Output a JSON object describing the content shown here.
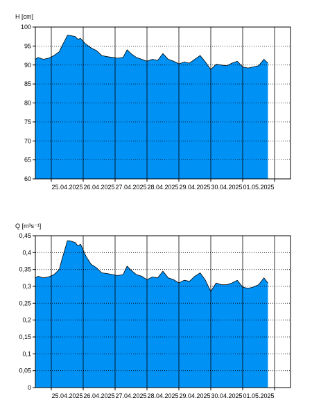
{
  "chart_data": [
    {
      "type": "area",
      "title": "",
      "ylabel": "H [cm]",
      "xlabel": "",
      "ylim": [
        60,
        100
      ],
      "yticks": [
        60,
        65,
        70,
        75,
        80,
        85,
        90,
        95,
        100
      ],
      "ytick_labels": [
        "60",
        "65",
        "70",
        "75",
        "80",
        "85",
        "90",
        "95",
        "100"
      ],
      "xlim": [
        "2025-04-24T12:00",
        "2025-05-02T12:00"
      ],
      "xtick_labels": [
        "25.04.2025",
        "26.04.2025",
        "27.04.2025",
        "28.04.2025",
        "29.04.2025",
        "30.04.2025",
        "01.05.2025"
      ],
      "day_lines": [
        "2025-04-25",
        "2025-04-26",
        "2025-04-27",
        "2025-04-28",
        "2025-04-29",
        "2025-04-30",
        "2025-05-01",
        "2025-05-02"
      ],
      "grid": "horizontal dotted",
      "fill_color": "#0091f5",
      "line_color": "#000000",
      "x": [
        "2025-04-24T12:00",
        "2025-04-24T14:00",
        "2025-04-24T18:00",
        "2025-04-24T22:00",
        "2025-04-25T02:00",
        "2025-04-25T06:00",
        "2025-04-25T08:00",
        "2025-04-25T11:00",
        "2025-04-25T12:00",
        "2025-04-25T14:00",
        "2025-04-25T18:00",
        "2025-04-25T20:00",
        "2025-04-25T22:00",
        "2025-04-26T02:00",
        "2025-04-26T06:00",
        "2025-04-26T10:00",
        "2025-04-26T14:00",
        "2025-04-26T18:00",
        "2025-04-26T22:00",
        "2025-04-27T02:00",
        "2025-04-27T06:00",
        "2025-04-27T09:00",
        "2025-04-27T12:00",
        "2025-04-27T16:00",
        "2025-04-27T20:00",
        "2025-04-28T00:00",
        "2025-04-28T04:00",
        "2025-04-28T08:00",
        "2025-04-28T12:00",
        "2025-04-28T16:00",
        "2025-04-28T20:00",
        "2025-04-29T00:00",
        "2025-04-29T04:00",
        "2025-04-29T08:00",
        "2025-04-29T12:00",
        "2025-04-29T16:00",
        "2025-04-29T20:00",
        "2025-04-30T00:00",
        "2025-04-30T04:00",
        "2025-04-30T08:00",
        "2025-04-30T12:00",
        "2025-04-30T16:00",
        "2025-04-30T20:00",
        "2025-05-01T00:00",
        "2025-05-01T04:00",
        "2025-05-01T08:00",
        "2025-05-01T12:00",
        "2025-05-01T16:00",
        "2025-05-01T19:00"
      ],
      "y": [
        91.5,
        92.0,
        91.5,
        91.8,
        92.5,
        93.5,
        95.0,
        97.0,
        97.8,
        97.8,
        97.5,
        96.8,
        97.0,
        95.5,
        94.5,
        93.8,
        92.5,
        92.2,
        92.0,
        91.8,
        92.0,
        94.0,
        93.0,
        92.0,
        91.5,
        91.0,
        91.5,
        91.2,
        93.0,
        91.5,
        91.0,
        90.3,
        90.8,
        90.5,
        91.5,
        92.5,
        90.8,
        88.8,
        90.2,
        90.0,
        89.8,
        90.5,
        91.0,
        89.5,
        89.2,
        89.5,
        89.8,
        91.5,
        90.5
      ]
    },
    {
      "type": "area",
      "title": "",
      "ylabel": "Q [m³s⁻¹]",
      "xlabel": "",
      "ylim": [
        0,
        0.45
      ],
      "yticks": [
        0,
        0.05,
        0.1,
        0.15,
        0.2,
        0.25,
        0.3,
        0.35,
        0.4,
        0.45
      ],
      "ytick_labels": [
        "0",
        "0,05",
        "0,1",
        "0,15",
        "0,2",
        "0,25",
        "0,3",
        "0,35",
        "0,4",
        "0,45"
      ],
      "xlim": [
        "2025-04-24T12:00",
        "2025-05-02T12:00"
      ],
      "xtick_labels": [
        "25.04.2025",
        "26.04.2025",
        "27.04.2025",
        "28.04.2025",
        "29.04.2025",
        "30.04.2025",
        "01.05.2025"
      ],
      "day_lines": [
        "2025-04-25",
        "2025-04-26",
        "2025-04-27",
        "2025-04-28",
        "2025-04-29",
        "2025-04-30",
        "2025-05-01",
        "2025-05-02"
      ],
      "grid": "horizontal dotted",
      "fill_color": "#0091f5",
      "line_color": "#000000",
      "x": [
        "2025-04-24T12:00",
        "2025-04-24T14:00",
        "2025-04-24T18:00",
        "2025-04-24T22:00",
        "2025-04-25T02:00",
        "2025-04-25T06:00",
        "2025-04-25T08:00",
        "2025-04-25T11:00",
        "2025-04-25T12:00",
        "2025-04-25T14:00",
        "2025-04-25T18:00",
        "2025-04-25T20:00",
        "2025-04-25T22:00",
        "2025-04-26T02:00",
        "2025-04-26T06:00",
        "2025-04-26T10:00",
        "2025-04-26T14:00",
        "2025-04-26T18:00",
        "2025-04-26T22:00",
        "2025-04-27T02:00",
        "2025-04-27T06:00",
        "2025-04-27T09:00",
        "2025-04-27T12:00",
        "2025-04-27T16:00",
        "2025-04-27T20:00",
        "2025-04-28T00:00",
        "2025-04-28T04:00",
        "2025-04-28T08:00",
        "2025-04-28T12:00",
        "2025-04-28T16:00",
        "2025-04-28T20:00",
        "2025-04-29T00:00",
        "2025-04-29T04:00",
        "2025-04-29T08:00",
        "2025-04-29T12:00",
        "2025-04-29T16:00",
        "2025-04-29T20:00",
        "2025-04-30T00:00",
        "2025-04-30T04:00",
        "2025-04-30T08:00",
        "2025-04-30T12:00",
        "2025-04-30T16:00",
        "2025-04-30T20:00",
        "2025-05-01T00:00",
        "2025-05-01T04:00",
        "2025-05-01T08:00",
        "2025-05-01T12:00",
        "2025-05-01T16:00",
        "2025-05-01T19:00"
      ],
      "y": [
        0.325,
        0.33,
        0.325,
        0.328,
        0.335,
        0.35,
        0.38,
        0.42,
        0.435,
        0.435,
        0.43,
        0.42,
        0.425,
        0.39,
        0.365,
        0.355,
        0.34,
        0.338,
        0.335,
        0.332,
        0.335,
        0.36,
        0.348,
        0.335,
        0.33,
        0.32,
        0.328,
        0.325,
        0.345,
        0.325,
        0.32,
        0.31,
        0.318,
        0.315,
        0.33,
        0.34,
        0.318,
        0.285,
        0.31,
        0.305,
        0.305,
        0.31,
        0.318,
        0.298,
        0.294,
        0.298,
        0.305,
        0.325,
        0.31
      ]
    }
  ]
}
